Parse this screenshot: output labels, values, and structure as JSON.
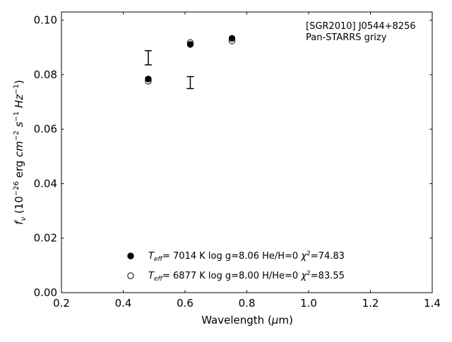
{
  "chart_data": {
    "type": "scatter",
    "xlabel": "Wavelength (μm)",
    "ylabel": "f_ν (10^-26 erg cm^-2 s^-1 Hz^-1)",
    "xlim": [
      0.2,
      1.4
    ],
    "ylim": [
      0.0,
      0.103
    ],
    "xticks": [
      "0.2",
      "0.4",
      "0.6",
      "0.8",
      "1.0",
      "1.2",
      "1.4"
    ],
    "yticks": [
      "0.00",
      "0.02",
      "0.04",
      "0.06",
      "0.08",
      "0.10"
    ],
    "grid": false,
    "annotation": [
      "[SGR2010] J0544+8256",
      "Pan-STARRS grizy"
    ],
    "legend_position": "bottom-center",
    "observed": {
      "x": [
        0.481,
        0.617
      ],
      "y": [
        0.0862,
        0.0771
      ],
      "yerr": [
        0.0026,
        0.0022
      ]
    },
    "series": [
      {
        "name": "T_eff= 7014 K  log g=8.06  He/H=0  χ²=74.83",
        "marker": "filled-circle",
        "x": [
          0.481,
          0.617,
          0.752
        ],
        "y": [
          0.0784,
          0.0911,
          0.0933
        ]
      },
      {
        "name": "T_eff= 6877 K  log g=8.00  H/He=0  χ²=83.55",
        "marker": "open-circle",
        "x": [
          0.481,
          0.617,
          0.752
        ],
        "y": [
          0.0776,
          0.0918,
          0.0924
        ]
      }
    ],
    "legend": {
      "entry1": {
        "teff": "7014 K",
        "logg": "log g=8.06",
        "comp": "He/H=0",
        "chi2": "=74.83"
      },
      "entry2": {
        "teff": "6877 K",
        "logg": "log g=8.00",
        "comp": "H/He=0",
        "chi2": "=83.55"
      }
    }
  }
}
